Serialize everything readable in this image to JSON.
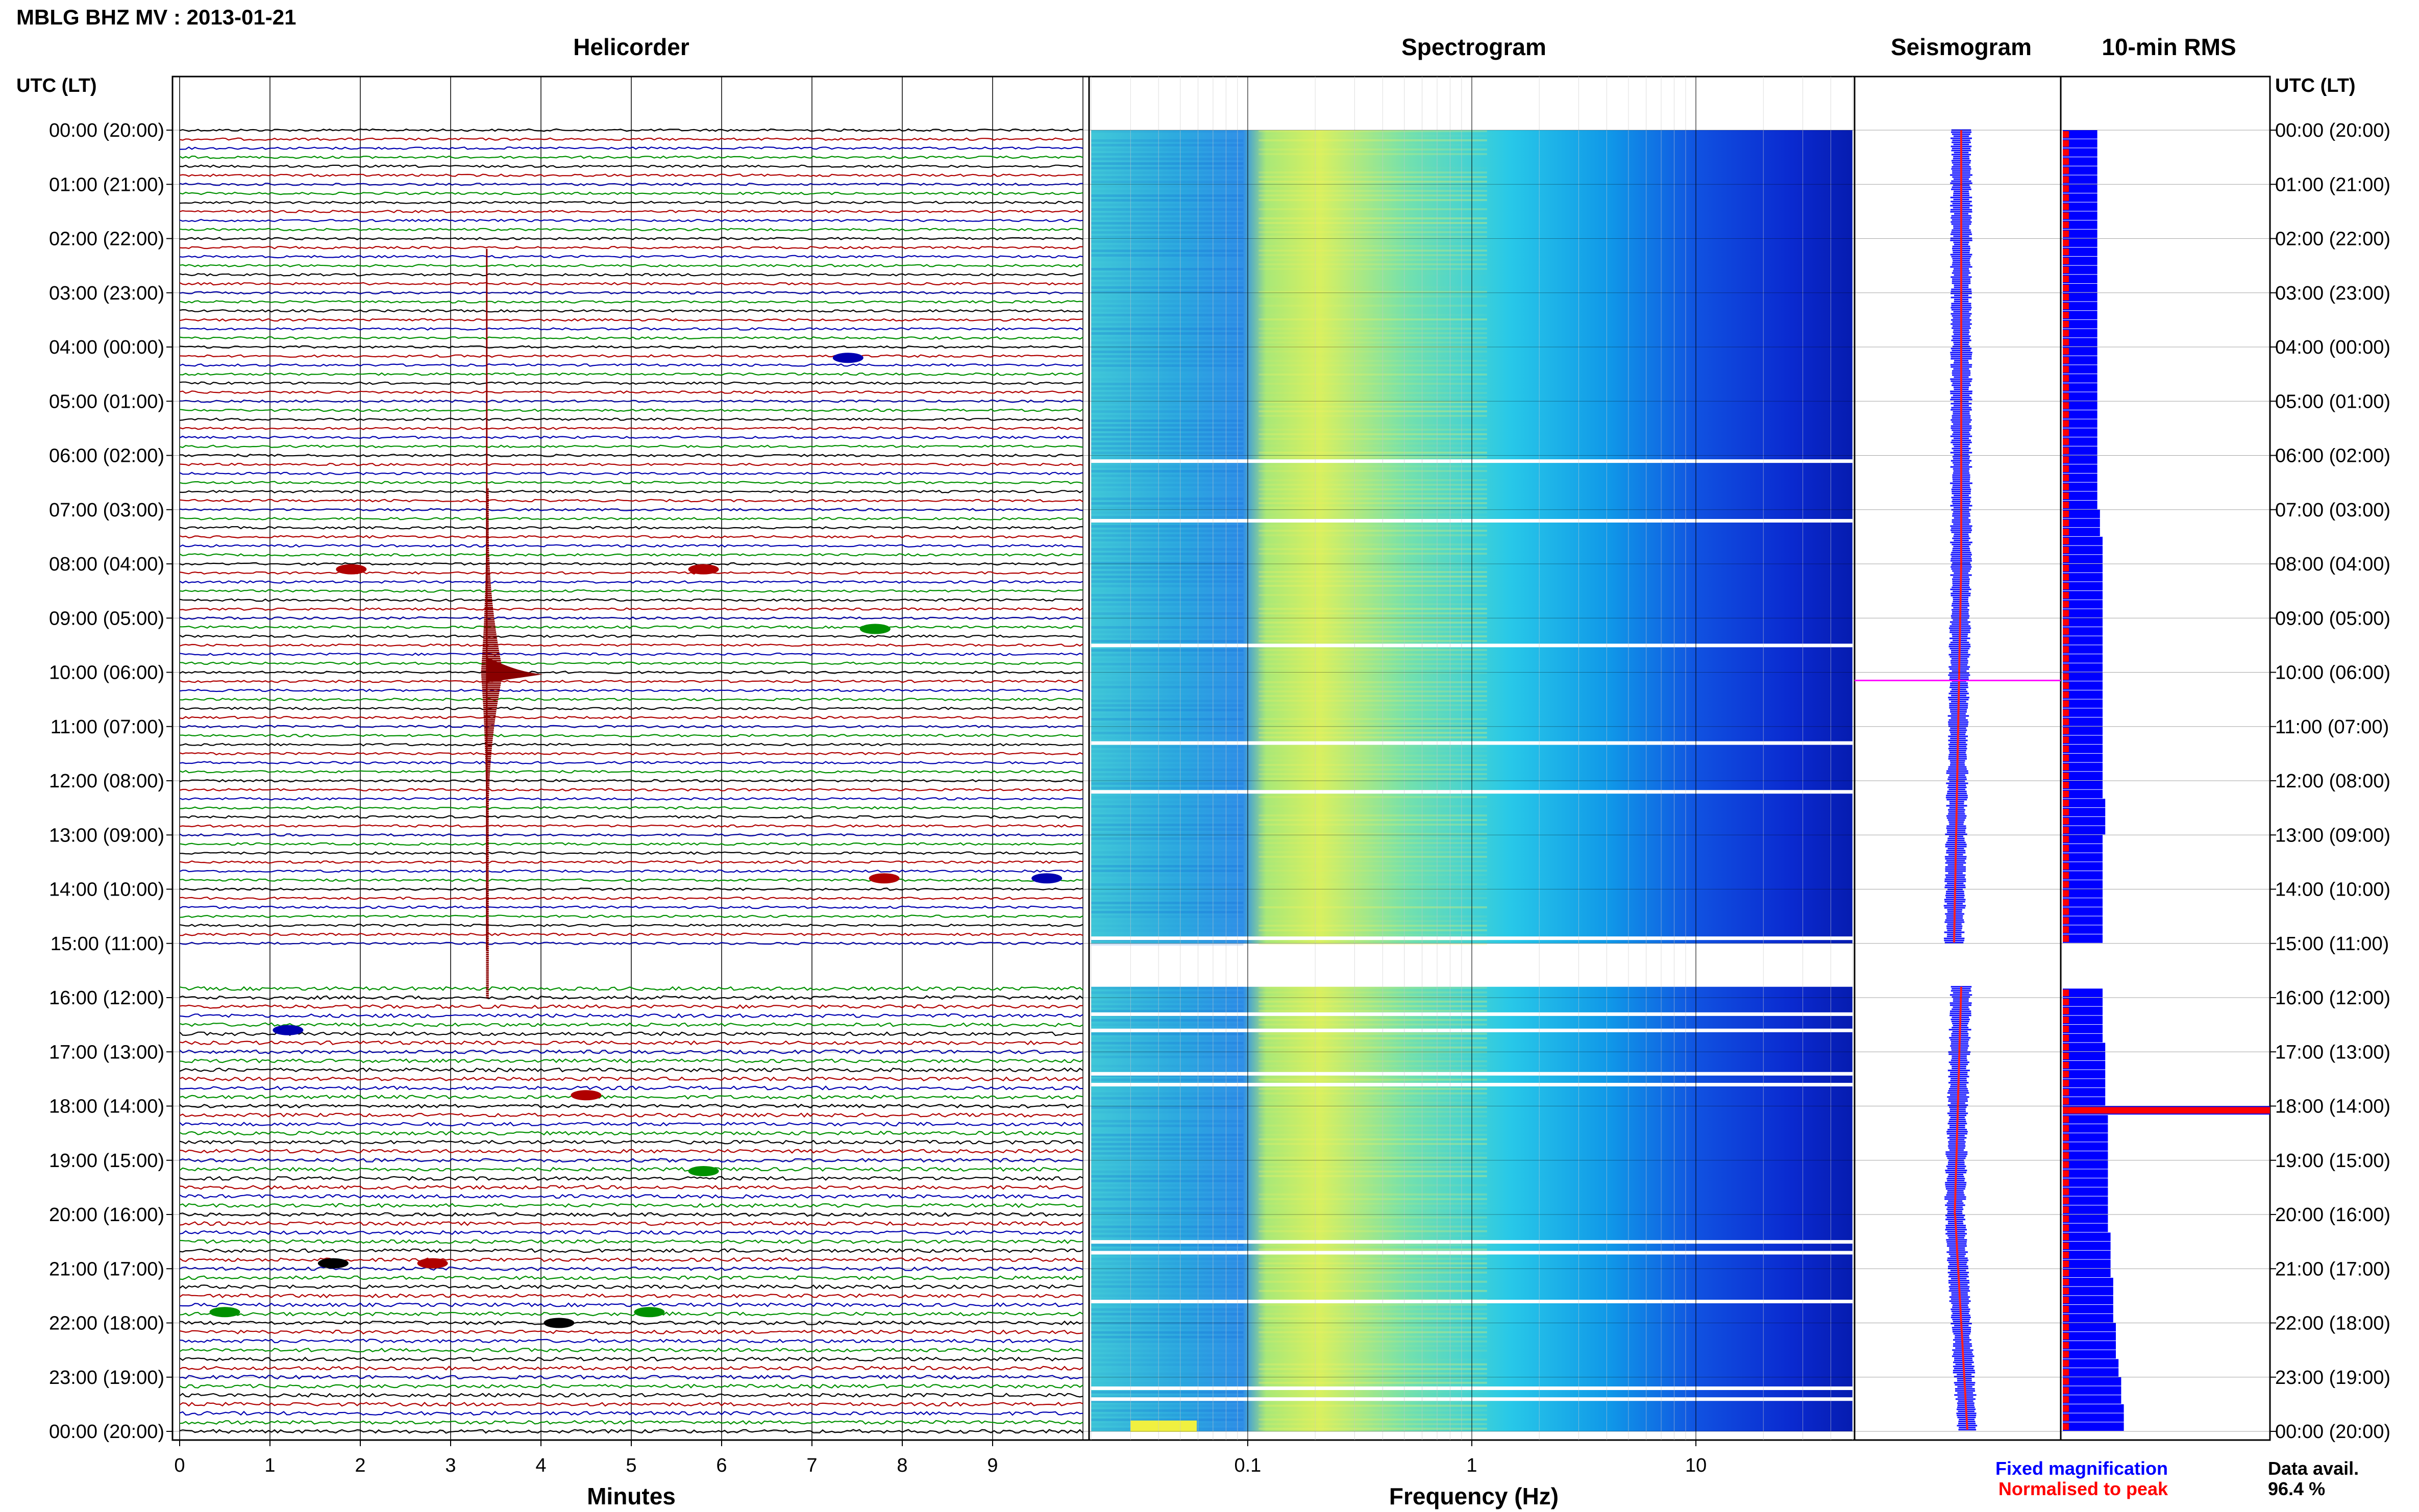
{
  "page": {
    "title": "MBLG BHZ MV : 2013-01-21",
    "left_axis_title": "UTC (LT)",
    "right_axis_title": "UTC (LT)"
  },
  "panels": {
    "helicorder": "Helicorder",
    "spectrogram": "Spectrogram",
    "seismogram": "Seismogram",
    "rms": "10-min RMS"
  },
  "axes": {
    "helicorder_xlabel": "Minutes",
    "spectrogram_xlabel": "Frequency (Hz)",
    "minute_ticks": [
      "0",
      "1",
      "2",
      "3",
      "4",
      "5",
      "6",
      "7",
      "8",
      "9"
    ],
    "freq_ticks": [
      "0.1",
      "1",
      "10"
    ]
  },
  "legend": {
    "fixed": "Fixed magnification",
    "normalised": "Normalised to peak",
    "fixed_color": "#0000ff",
    "normalised_color": "#ff0000"
  },
  "data_avail": {
    "label": "Data avail.",
    "value": "96.4 %"
  },
  "chart_data": {
    "type": "helicorder",
    "time_labels": [
      "00:00 (20:00)",
      "01:00 (21:00)",
      "02:00 (22:00)",
      "03:00 (23:00)",
      "04:00 (00:00)",
      "05:00 (01:00)",
      "06:00 (02:00)",
      "07:00 (03:00)",
      "08:00 (04:00)",
      "09:00 (05:00)",
      "10:00 (06:00)",
      "11:00 (07:00)",
      "12:00 (08:00)",
      "13:00 (09:00)",
      "14:00 (10:00)",
      "15:00 (11:00)",
      "16:00 (12:00)",
      "17:00 (13:00)",
      "18:00 (14:00)",
      "19:00 (15:00)",
      "20:00 (16:00)",
      "21:00 (17:00)",
      "22:00 (18:00)",
      "23:00 (19:00)",
      "00:00 (20:00)"
    ],
    "helicorder_colors": [
      "#000000",
      "#b00000",
      "#0000b0",
      "#009000"
    ],
    "minutes_per_line": 10,
    "lines_per_hour": 6,
    "gap_hours": [
      15.0,
      15.8
    ],
    "earthquake": {
      "start_hour": 7.0,
      "peak_hour": 10.0,
      "end_hour": 16.0,
      "minute": 3.4
    },
    "freq_range_hz": [
      0.02,
      50
    ],
    "rms_normalised": [
      0.35,
      0.35,
      0.35,
      0.35,
      0.35,
      0.35,
      0.35,
      0.35,
      0.35,
      0.35,
      0.35,
      0.35,
      0.35,
      0.35,
      0.35,
      0.35,
      0.35,
      0.35,
      0.35,
      0.35,
      0.35,
      0.35,
      0.35,
      0.35,
      0.35,
      0.35,
      0.35,
      0.35,
      0.35,
      0.35,
      0.35,
      0.35,
      0.35,
      0.35,
      0.35,
      0.35,
      0.35,
      0.35,
      0.35,
      0.35,
      0.35,
      0.35,
      0.35,
      0.35,
      0.35,
      0.35,
      0.35,
      0.35,
      0.35,
      0.35,
      0.35,
      0.35,
      0.35,
      0.35,
      0.35,
      0.35,
      0.35,
      0.35,
      0.35,
      0.35,
      1.0,
      0.35,
      0.35,
      0.35,
      0.35,
      0.35,
      0.35,
      0.35,
      0.35,
      0.35,
      0.35,
      0.35,
      0.35,
      0.35,
      0.35,
      0.35,
      0.35,
      0.35,
      0.35,
      0.35,
      0.35,
      0.35,
      0.35,
      0.35,
      0.35,
      0.35,
      0.35,
      0.35,
      0.35,
      0.35
    ],
    "rms_fixed": [
      1.3,
      1.3,
      1.3,
      1.3,
      1.3,
      1.3,
      1.3,
      1.3,
      1.3,
      1.3,
      1.3,
      1.3,
      1.3,
      1.3,
      1.3,
      1.3,
      1.3,
      1.3,
      1.3,
      1.3,
      1.3,
      1.3,
      1.3,
      1.3,
      1.4,
      1.4,
      1.5,
      1.5,
      1.5,
      1.5,
      1.5,
      1.5,
      1.5,
      1.5,
      1.5,
      1.5,
      1.5,
      1.5,
      1.5,
      1.5,
      1.5,
      1.5,
      1.5,
      1.6,
      1.6,
      1.5,
      1.5,
      1.5,
      1.5,
      1.5,
      1.5,
      1.5,
      1.5,
      1.5,
      1.6,
      1.6,
      1.6,
      1.6,
      1.6,
      1.6,
      10.0,
      1.7,
      1.7,
      1.7,
      1.7,
      1.7,
      1.7,
      1.7,
      1.7,
      1.7,
      1.7,
      1.8,
      1.8,
      1.8,
      1.8,
      1.9,
      1.9,
      1.9,
      1.9,
      2.0,
      2.0,
      2.0,
      2.1,
      2.1,
      2.2,
      2.2,
      2.3,
      2.3,
      2.3,
      2.3
    ]
  }
}
